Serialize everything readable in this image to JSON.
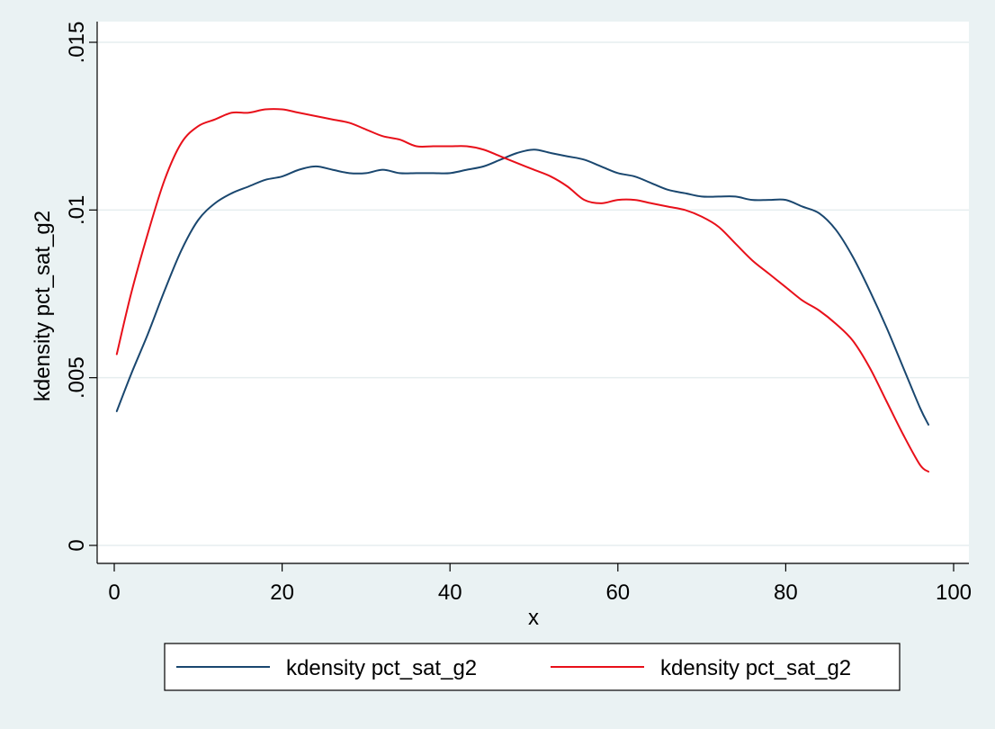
{
  "chart_data": {
    "type": "line",
    "title": "",
    "xlabel": "x",
    "ylabel": "kdensity pct_sat_g2",
    "xlim": [
      0,
      100
    ],
    "ylim": [
      0,
      0.015
    ],
    "x_ticks": [
      0,
      20,
      40,
      60,
      80,
      100
    ],
    "x_tick_labels": [
      "0",
      "20",
      "40",
      "60",
      "80",
      "100"
    ],
    "y_ticks": [
      0,
      0.005,
      0.01,
      0.015
    ],
    "y_tick_labels": [
      "0",
      ".005",
      ".01",
      ".015"
    ],
    "grid": true,
    "legend_position": "bottom",
    "series": [
      {
        "name": "kdensity pct_sat_g2",
        "color": "#1a476f",
        "x": [
          0.3,
          2,
          4,
          6,
          8,
          10,
          12,
          14,
          16,
          18,
          20,
          22,
          24,
          26,
          28,
          30,
          32,
          34,
          36,
          38,
          40,
          42,
          44,
          46,
          48,
          50,
          52,
          54,
          56,
          58,
          60,
          62,
          64,
          66,
          68,
          70,
          72,
          74,
          76,
          78,
          80,
          82,
          84,
          86,
          88,
          90,
          92,
          94,
          96,
          97
        ],
        "y": [
          0.004,
          0.0051,
          0.0063,
          0.0076,
          0.0088,
          0.0097,
          0.0102,
          0.0105,
          0.0107,
          0.0109,
          0.011,
          0.0112,
          0.0113,
          0.0112,
          0.0111,
          0.0111,
          0.0112,
          0.0111,
          0.0111,
          0.0111,
          0.0111,
          0.0112,
          0.0113,
          0.0115,
          0.0117,
          0.0118,
          0.0117,
          0.0116,
          0.0115,
          0.0113,
          0.0111,
          0.011,
          0.0108,
          0.0106,
          0.0105,
          0.0104,
          0.0104,
          0.0104,
          0.0103,
          0.0103,
          0.0103,
          0.0101,
          0.0099,
          0.0094,
          0.0086,
          0.0076,
          0.0065,
          0.0053,
          0.0041,
          0.0036
        ]
      },
      {
        "name": "kdensity pct_sat_g2",
        "color": "#e8101a",
        "x": [
          0.3,
          2,
          4,
          6,
          8,
          10,
          12,
          14,
          16,
          18,
          20,
          22,
          24,
          26,
          28,
          30,
          32,
          34,
          36,
          38,
          40,
          42,
          44,
          46,
          48,
          50,
          52,
          54,
          56,
          58,
          60,
          62,
          64,
          66,
          68,
          70,
          72,
          74,
          76,
          78,
          80,
          82,
          84,
          86,
          88,
          90,
          92,
          94,
          96,
          97
        ],
        "y": [
          0.0057,
          0.0075,
          0.0093,
          0.0109,
          0.012,
          0.0125,
          0.0127,
          0.0129,
          0.0129,
          0.013,
          0.013,
          0.0129,
          0.0128,
          0.0127,
          0.0126,
          0.0124,
          0.0122,
          0.0121,
          0.0119,
          0.0119,
          0.0119,
          0.0119,
          0.0118,
          0.0116,
          0.0114,
          0.0112,
          0.011,
          0.0107,
          0.0103,
          0.0102,
          0.0103,
          0.0103,
          0.0102,
          0.0101,
          0.01,
          0.0098,
          0.0095,
          0.009,
          0.0085,
          0.0081,
          0.0077,
          0.0073,
          0.007,
          0.0066,
          0.0061,
          0.0053,
          0.0043,
          0.0033,
          0.0024,
          0.0022
        ]
      }
    ]
  }
}
